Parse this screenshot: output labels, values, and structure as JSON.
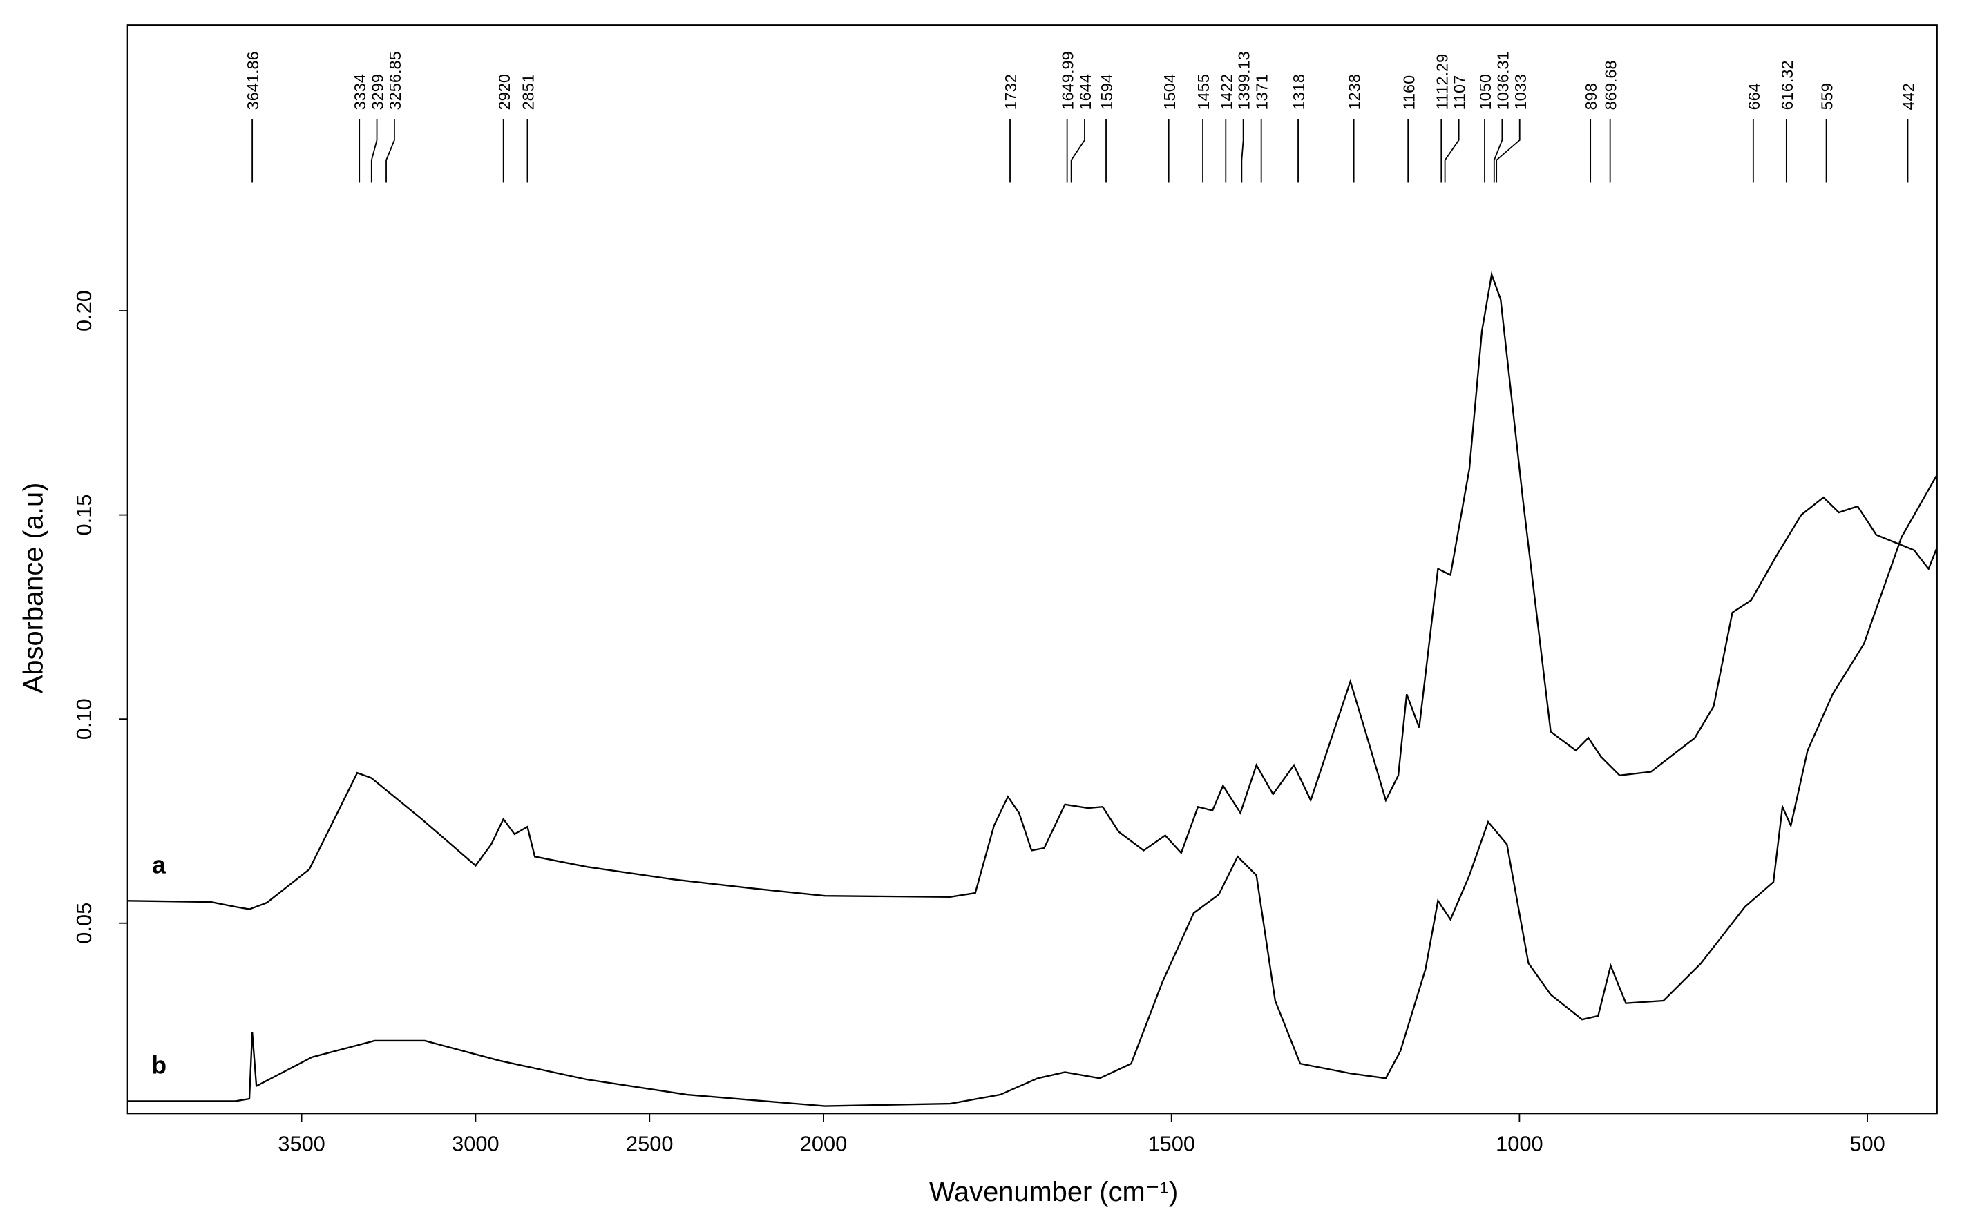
{
  "chart_data": {
    "type": "line",
    "xlabel": "Wavenumber (cm⁻¹)",
    "ylabel": "Absorbance (a.u)",
    "xlim": [
      4000,
      400
    ],
    "x_scale_break": 2000,
    "ylim": [
      0.0034,
      0.27
    ],
    "xticks": [
      3500,
      3000,
      2500,
      2000,
      1500,
      1000,
      500
    ],
    "yticks": [
      0.05,
      {
        "value": 0.1,
        "label": "0.10"
      },
      0.15,
      {
        "value": 0.2,
        "label": "0.20"
      }
    ],
    "peaks": [
      3641.86,
      3334,
      3299,
      3256.85,
      2920,
      2851,
      1732,
      1649.99,
      1644,
      1594,
      1504,
      1455,
      1422,
      1399.13,
      1371,
      1318,
      1238,
      1160,
      1112.29,
      1107,
      1050,
      1036.31,
      1033,
      898,
      869.68,
      664,
      616.32,
      559,
      442
    ],
    "series": [
      {
        "name": "a",
        "color": "#000000",
        "x": [
          4000,
          3760,
          3690,
          3650,
          3600,
          3478,
          3340,
          3300,
          3155,
          3000,
          2955,
          2920,
          2888,
          2851,
          2830,
          2680,
          2430,
          2212,
          1998,
          1818,
          1782,
          1755,
          1735,
          1719,
          1701,
          1683,
          1653,
          1620,
          1599,
          1576,
          1540,
          1509,
          1486,
          1462,
          1441,
          1426,
          1401,
          1378,
          1354,
          1324,
          1300,
          1243,
          1216,
          1192,
          1174,
          1162,
          1144,
          1117,
          1099,
          1072,
          1054,
          1040,
          1027,
          995,
          955,
          919,
          901,
          883,
          856,
          811,
          748,
          721,
          694,
          667,
          631,
          595,
          563,
          541,
          514,
          487,
          433,
          412,
          400
        ],
        "values": [
          0.0555,
          0.0552,
          0.054,
          0.0534,
          0.055,
          0.0632,
          0.0868,
          0.0856,
          0.0755,
          0.0641,
          0.0693,
          0.0755,
          0.0718,
          0.0736,
          0.0663,
          0.0638,
          0.0607,
          0.0586,
          0.0567,
          0.0564,
          0.0574,
          0.0739,
          0.081,
          0.077,
          0.0678,
          0.0684,
          0.0791,
          0.0782,
          0.0785,
          0.0724,
          0.0678,
          0.0715,
          0.0672,
          0.0785,
          0.0776,
          0.0837,
          0.077,
          0.0887,
          0.0816,
          0.0887,
          0.0801,
          0.1092,
          0.0939,
          0.0801,
          0.0862,
          0.1061,
          0.0979,
          0.1368,
          0.1353,
          0.1613,
          0.195,
          0.2089,
          0.2028,
          0.1537,
          0.0969,
          0.0923,
          0.0954,
          0.0908,
          0.0862,
          0.0871,
          0.0954,
          0.1031,
          0.1261,
          0.1291,
          0.1399,
          0.15,
          0.1543,
          0.1506,
          0.1521,
          0.1451,
          0.1414,
          0.1368,
          0.142
        ]
      },
      {
        "name": "b",
        "color": "#000000",
        "x": [
          4000,
          3690,
          3650,
          3642,
          3630,
          3470,
          3290,
          3146,
          2930,
          2680,
          2392,
          2169,
          1998,
          1818,
          1746,
          1692,
          1653,
          1603,
          1558,
          1513,
          1468,
          1432,
          1405,
          1378,
          1351,
          1315,
          1243,
          1192,
          1171,
          1135,
          1117,
          1099,
          1072,
          1045,
          1018,
          987,
          955,
          910,
          887,
          869,
          847,
          793,
          739,
          676,
          635,
          622,
          610,
          586,
          550,
          505,
          451,
          400
        ],
        "values": [
          0.0064,
          0.0064,
          0.007,
          0.0233,
          0.0101,
          0.0172,
          0.0212,
          0.0212,
          0.0163,
          0.0117,
          0.008,
          0.0064,
          0.0052,
          0.0058,
          0.008,
          0.012,
          0.0135,
          0.012,
          0.0156,
          0.0356,
          0.0525,
          0.057,
          0.0663,
          0.0617,
          0.031,
          0.0156,
          0.0132,
          0.012,
          0.0187,
          0.0387,
          0.0555,
          0.0509,
          0.0617,
          0.0748,
          0.0693,
          0.0402,
          0.0325,
          0.0264,
          0.0273,
          0.0396,
          0.0304,
          0.031,
          0.0402,
          0.054,
          0.0601,
          0.0785,
          0.0739,
          0.0923,
          0.1061,
          0.1184,
          0.1445,
          0.1598
        ]
      }
    ]
  }
}
